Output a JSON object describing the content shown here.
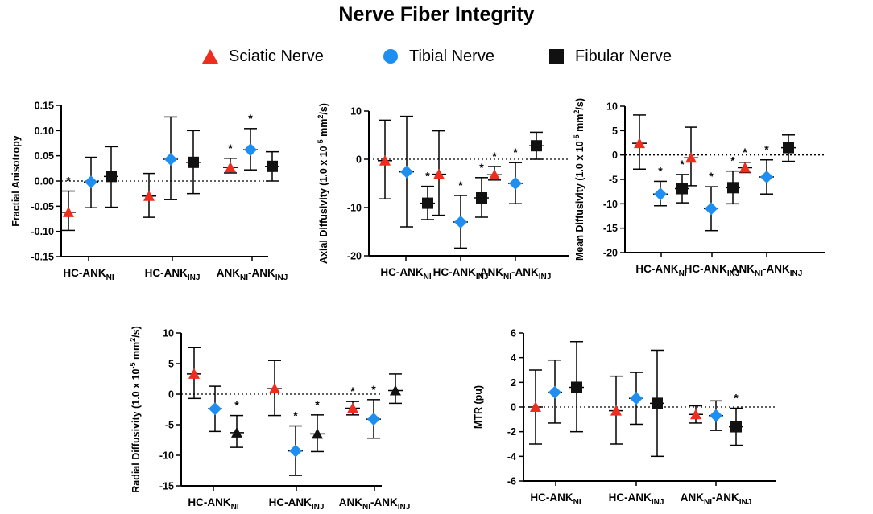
{
  "title": "Nerve Fiber Integrity",
  "colors": {
    "sciatic": "#ee2d1e",
    "tibial": "#1e8ff0",
    "fibular": "#111111",
    "unit_note": "#c0392b"
  },
  "legend": [
    {
      "name": "Sciatic Nerve",
      "marker": "triangle",
      "color": "#ee2d1e"
    },
    {
      "name": "Tibial Nerve",
      "marker": "circle",
      "color": "#1e8ff0"
    },
    {
      "name": "Fibular Nerve",
      "marker": "square",
      "color": "#111111"
    }
  ],
  "chart_data": [
    {
      "type": "scatter",
      "title": "",
      "ylabel": "Fractial Anisotropy",
      "ylim": [
        -0.15,
        0.15
      ],
      "yticks": [
        "0.15",
        "0.10",
        "0.05",
        "0.00",
        "-0.05",
        "-0.10",
        "-0.15"
      ],
      "ytick_values": [
        0.15,
        0.1,
        0.05,
        0.0,
        -0.05,
        -0.1,
        -0.15
      ],
      "categories": [
        {
          "base": "HC-ANK",
          "sub": "NI"
        },
        {
          "base": "HC-ANK",
          "sub": "INJ"
        },
        {
          "base": "ANK",
          "sub": "NI",
          "base2": "-ANK",
          "sub2": "INJ"
        }
      ],
      "series": [
        {
          "name": "Sciatic Nerve",
          "marker": "triangle",
          "values": [
            -0.062,
            -0.03,
            0.027
          ],
          "lower": [
            -0.098,
            -0.072,
            0.016
          ],
          "upper": [
            -0.02,
            0.015,
            0.045
          ],
          "sig": [
            true,
            false,
            true
          ]
        },
        {
          "name": "Tibial Nerve",
          "marker": "diamond",
          "values": [
            -0.002,
            0.043,
            0.062
          ],
          "lower": [
            -0.053,
            -0.037,
            0.022
          ],
          "upper": [
            0.047,
            0.127,
            0.104
          ],
          "sig": [
            false,
            false,
            true
          ]
        },
        {
          "name": "Fibular Nerve",
          "marker": "square",
          "values": [
            0.009,
            0.037,
            0.029
          ],
          "lower": [
            -0.052,
            -0.025,
            0.0
          ],
          "upper": [
            0.068,
            0.1,
            0.058
          ],
          "sig": [
            false,
            false,
            false
          ]
        }
      ]
    },
    {
      "type": "scatter",
      "title": "",
      "ylabel": "Axial Diffusivity (1.0 x 10",
      "ylabel_sup": "-5",
      "ylabel_tail": " mm",
      "ylabel_sup2": "2",
      "ylabel_end": "/s)",
      "ylim": [
        -20,
        10
      ],
      "yticks": [
        "10",
        "0",
        "-10",
        "-20"
      ],
      "ytick_values": [
        10,
        0,
        -10,
        -20
      ],
      "categories": [
        {
          "base": "HC-ANK",
          "sub": "NI"
        },
        {
          "base": "HC-ANK",
          "sub": "INJ"
        },
        {
          "base": "ANK",
          "sub": "NI",
          "base2": "-ANK",
          "sub2": "INJ"
        }
      ],
      "series": [
        {
          "name": "Sciatic Nerve",
          "marker": "triangle",
          "values": [
            -0.3,
            -3.1,
            -3.2
          ],
          "lower": [
            -8.2,
            -11.6,
            -4.3
          ],
          "upper": [
            8.1,
            5.9,
            -1.5
          ],
          "sig": [
            false,
            false,
            true
          ]
        },
        {
          "name": "Tibial Nerve",
          "marker": "diamond",
          "values": [
            -2.6,
            -13.0,
            -5.0
          ],
          "lower": [
            -14.0,
            -18.4,
            -9.2
          ],
          "upper": [
            8.9,
            -7.5,
            -0.7
          ],
          "sig": [
            false,
            true,
            true
          ]
        },
        {
          "name": "Fibular Nerve",
          "marker": "square",
          "values": [
            -9.1,
            -8.0,
            2.8
          ],
          "lower": [
            -12.5,
            -12.0,
            0.0
          ],
          "upper": [
            -5.6,
            -3.8,
            5.6
          ],
          "sig": [
            true,
            true,
            false
          ]
        }
      ]
    },
    {
      "type": "scatter",
      "title": "",
      "ylabel": "Mean Diffusivity (1.0 x 10",
      "ylabel_sup": "-5",
      "ylabel_tail": " mm",
      "ylabel_sup2": "2",
      "ylabel_end": "/s)",
      "ylim": [
        -20,
        10
      ],
      "yticks": [
        "10",
        "5",
        "0",
        "-5",
        "-10",
        "-15",
        "-20"
      ],
      "ytick_values": [
        10,
        5,
        0,
        -5,
        -10,
        -15,
        -20
      ],
      "categories": [
        {
          "base": "HC-ANK",
          "sub": "NI"
        },
        {
          "base": "HC-ANK",
          "sub": "INJ"
        },
        {
          "base": "ANK",
          "sub": "NI",
          "base2": "-ANK",
          "sub2": "INJ"
        }
      ],
      "series": [
        {
          "name": "Sciatic Nerve",
          "marker": "triangle",
          "values": [
            2.4,
            -0.6,
            -2.6
          ],
          "lower": [
            -2.9,
            -6.3,
            -3.6
          ],
          "upper": [
            8.2,
            5.7,
            -1.5
          ],
          "sig": [
            false,
            false,
            true
          ]
        },
        {
          "name": "Tibial Nerve",
          "marker": "diamond",
          "values": [
            -8.0,
            -11.0,
            -4.5
          ],
          "lower": [
            -10.4,
            -15.5,
            -8.0
          ],
          "upper": [
            -5.4,
            -6.5,
            -1.0
          ],
          "sig": [
            true,
            true,
            true
          ]
        },
        {
          "name": "Fibular Nerve",
          "marker": "square",
          "values": [
            -6.9,
            -6.7,
            1.5
          ],
          "lower": [
            -9.8,
            -10.0,
            -1.3
          ],
          "upper": [
            -4.0,
            -3.3,
            4.1
          ],
          "sig": [
            true,
            true,
            false
          ]
        }
      ]
    },
    {
      "type": "scatter",
      "title": "",
      "ylabel": "Radial Diffusivity (1.0 x 10",
      "ylabel_sup": "-5",
      "ylabel_tail": " mm",
      "ylabel_sup2": "2",
      "ylabel_end": "/s)",
      "ylim": [
        -15,
        10
      ],
      "yticks": [
        "10",
        "5",
        "0",
        "-5",
        "-10",
        "-15"
      ],
      "ytick_values": [
        10,
        5,
        0,
        -5,
        -10,
        -15
      ],
      "categories": [
        {
          "base": "HC-ANK",
          "sub": "NI"
        },
        {
          "base": "HC-ANK",
          "sub": "INJ"
        },
        {
          "base": "ANK",
          "sub": "NI",
          "base2": "-ANK",
          "sub2": "INJ"
        }
      ],
      "series": [
        {
          "name": "Sciatic Nerve",
          "marker": "triangle",
          "values": [
            3.3,
            0.9,
            -2.3
          ],
          "lower": [
            -0.7,
            -3.5,
            -3.4
          ],
          "upper": [
            7.6,
            5.5,
            -1.2
          ],
          "sig": [
            false,
            false,
            true
          ]
        },
        {
          "name": "Tibial Nerve",
          "marker": "diamond",
          "values": [
            -2.4,
            -9.3,
            -4.1
          ],
          "lower": [
            -6.1,
            -13.3,
            -7.2
          ],
          "upper": [
            1.3,
            -5.2,
            -0.9
          ],
          "sig": [
            false,
            true,
            true
          ]
        },
        {
          "name": "Fibular Nerve",
          "marker": "triangle",
          "values": [
            -6.3,
            -6.5,
            0.6
          ],
          "lower": [
            -8.7,
            -9.4,
            -1.5
          ],
          "upper": [
            -3.5,
            -3.4,
            3.3
          ],
          "sig": [
            true,
            true,
            false
          ]
        }
      ]
    },
    {
      "type": "scatter",
      "title": "",
      "ylabel": "MTR",
      "ylabel_unit": "(pu)",
      "ylim": [
        -6,
        6
      ],
      "yticks": [
        "6",
        "4",
        "2",
        "0",
        "-2",
        "-4",
        "-6"
      ],
      "ytick_values": [
        6,
        4,
        2,
        0,
        -2,
        -4,
        -6
      ],
      "categories": [
        {
          "base": "HC-ANK",
          "sub": "NI"
        },
        {
          "base": "HC-ANK",
          "sub": "INJ"
        },
        {
          "base": "ANK",
          "sub": "NI",
          "base2": "-ANK",
          "sub2": "INJ"
        }
      ],
      "series": [
        {
          "name": "Sciatic Nerve",
          "marker": "triangle",
          "values": [
            0.0,
            -0.3,
            -0.6
          ],
          "lower": [
            -3.0,
            -3.0,
            -1.3
          ],
          "upper": [
            3.0,
            2.5,
            0.1
          ],
          "sig": [
            false,
            false,
            false
          ]
        },
        {
          "name": "Tibial Nerve",
          "marker": "diamond",
          "values": [
            1.2,
            0.7,
            -0.7
          ],
          "lower": [
            -1.3,
            -1.4,
            -1.9
          ],
          "upper": [
            3.8,
            2.8,
            0.5
          ],
          "sig": [
            false,
            false,
            false
          ]
        },
        {
          "name": "Fibular Nerve",
          "marker": "square",
          "values": [
            1.6,
            0.3,
            -1.6
          ],
          "lower": [
            -2.0,
            -4.0,
            -3.1
          ],
          "upper": [
            5.3,
            4.6,
            -0.1
          ],
          "sig": [
            false,
            false,
            true
          ]
        }
      ]
    }
  ]
}
